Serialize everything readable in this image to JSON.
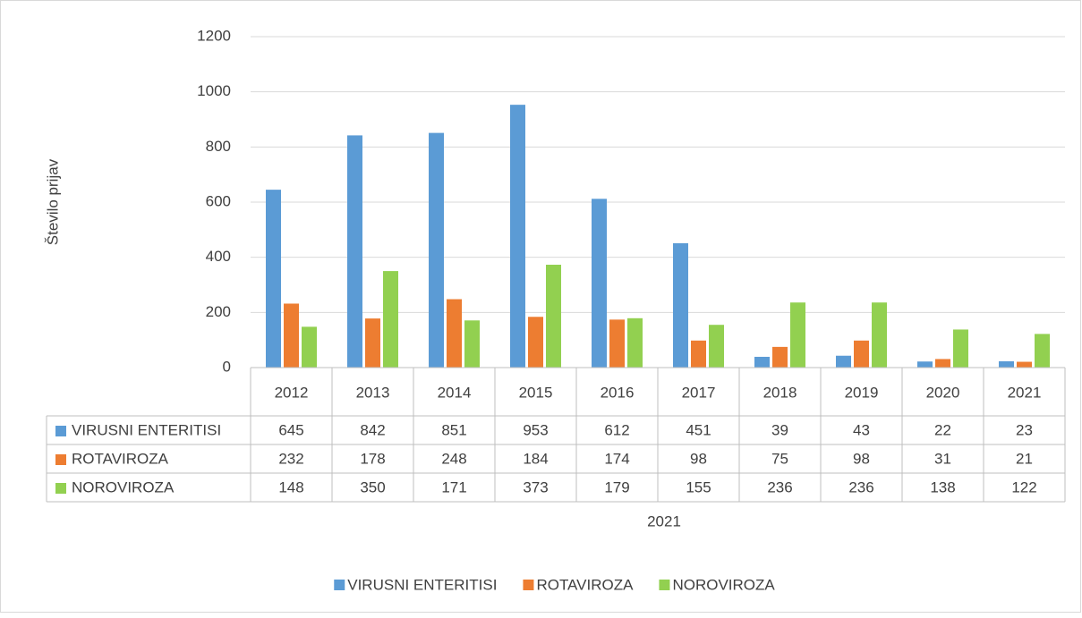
{
  "chart_data": {
    "type": "bar",
    "y_axis_label": "Število prijav",
    "x_axis_label": "2021",
    "categories": [
      "2012",
      "2013",
      "2014",
      "2015",
      "2016",
      "2017",
      "2018",
      "2019",
      "2020",
      "2021"
    ],
    "series": [
      {
        "name": "VIRUSNI ENTERITISI",
        "color": "#5b9bd5",
        "values": [
          645,
          842,
          851,
          953,
          612,
          451,
          39,
          43,
          22,
          23
        ]
      },
      {
        "name": "ROTAVIROZA",
        "color": "#ed7d31",
        "values": [
          232,
          178,
          248,
          184,
          174,
          98,
          75,
          98,
          31,
          21
        ]
      },
      {
        "name": "NOROVIROZA",
        "color": "#92d050",
        "values": [
          148,
          350,
          171,
          373,
          179,
          155,
          236,
          236,
          138,
          122
        ]
      }
    ],
    "ylim": [
      0,
      1200
    ],
    "yticks": [
      0,
      200,
      400,
      600,
      800,
      1000,
      1200
    ],
    "grid": true,
    "legend": "bottom"
  }
}
